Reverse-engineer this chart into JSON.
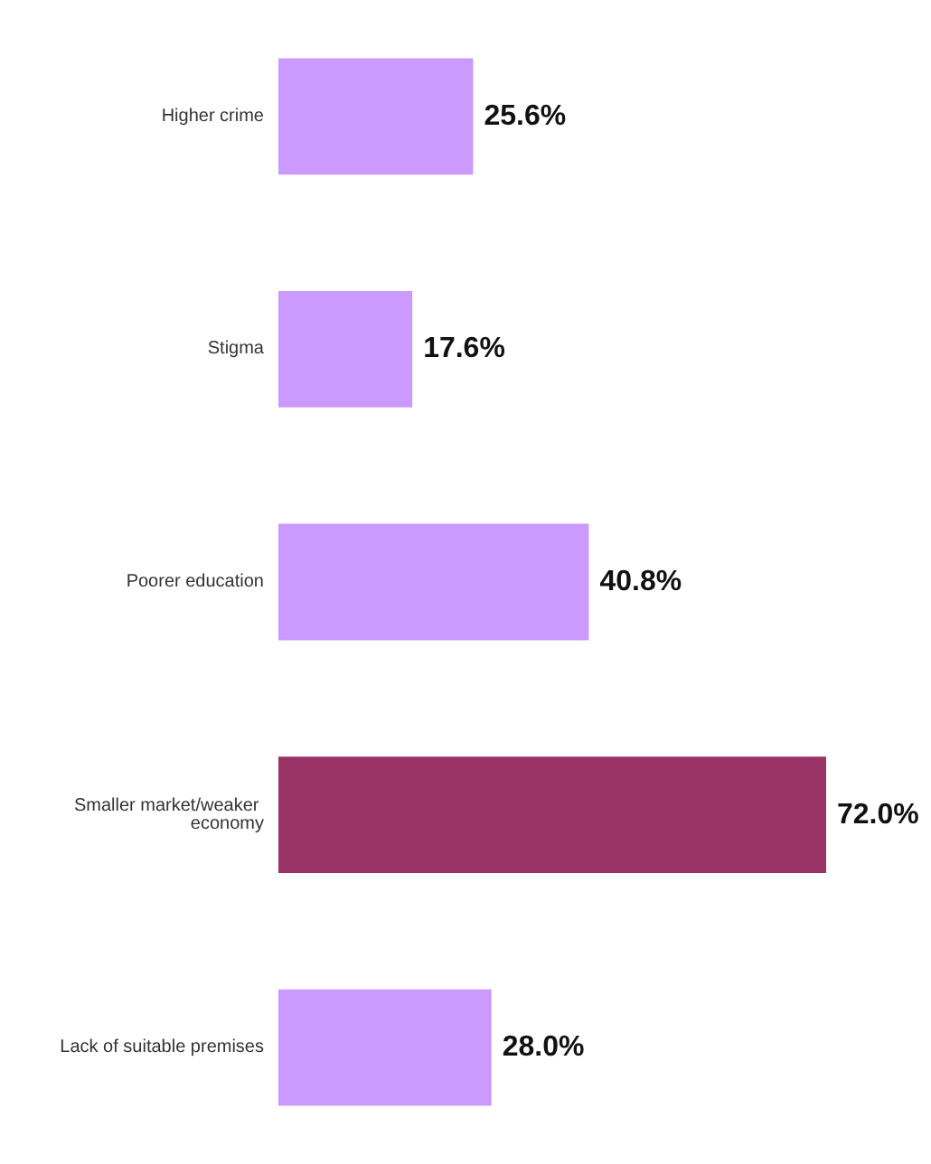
{
  "chart_data": {
    "type": "bar",
    "orientation": "horizontal",
    "categories": [
      "Higher crime",
      "Stigma",
      "Poorer education",
      "Smaller market/weaker economy",
      "Lack of suitable premises"
    ],
    "values": [
      25.6,
      17.6,
      40.8,
      72.0,
      28.0
    ],
    "colors": [
      "#cc99ff",
      "#cc99ff",
      "#cc99ff",
      "#993366",
      "#cc99ff"
    ],
    "value_labels": [
      "25.6%",
      "17.6%",
      "40.8%",
      "72.0%",
      "28.0%"
    ]
  }
}
